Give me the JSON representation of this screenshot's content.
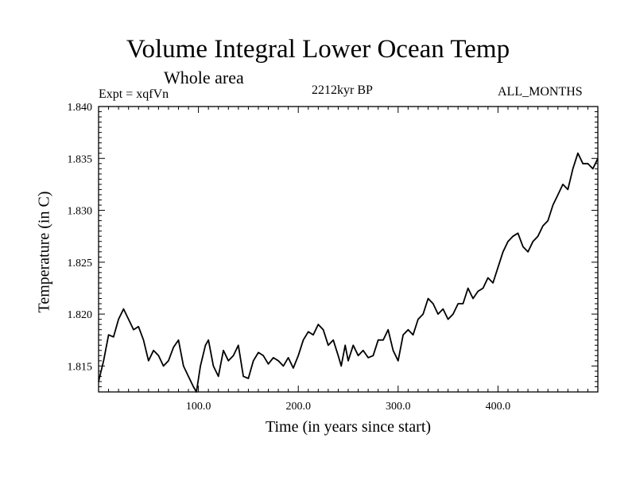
{
  "chart_data": {
    "type": "line",
    "title": "Volume Integral Lower Ocean Temp",
    "subtitle": "Whole area",
    "experiment_label": "Expt = xqfVn",
    "period_label": "2212kyr BP",
    "months_label": "ALL_MONTHS",
    "xlabel": "Time (in years since start)",
    "ylabel": "Temperature (in C)",
    "xlim": [
      0,
      500
    ],
    "ylim": [
      1.8125,
      1.84
    ],
    "x_ticks": [
      100,
      200,
      300,
      400
    ],
    "x_tick_labels": [
      "100.0",
      "200.0",
      "300.0",
      "400.0"
    ],
    "y_ticks": [
      1.815,
      1.82,
      1.825,
      1.83,
      1.835,
      1.84
    ],
    "y_tick_labels": [
      "1.815",
      "1.820",
      "1.825",
      "1.830",
      "1.835",
      "1.840"
    ],
    "grid": false,
    "series": [
      {
        "name": "Volume Integral Lower Ocean Temp",
        "x": [
          0,
          5,
          10,
          15,
          20,
          25,
          30,
          35,
          40,
          45,
          50,
          55,
          60,
          65,
          70,
          75,
          80,
          85,
          90,
          95,
          98,
          102,
          107,
          110,
          115,
          120,
          125,
          130,
          135,
          140,
          145,
          150,
          155,
          160,
          165,
          170,
          175,
          180,
          185,
          190,
          195,
          200,
          205,
          210,
          215,
          220,
          225,
          230,
          235,
          240,
          243,
          247,
          250,
          255,
          260,
          265,
          270,
          275,
          280,
          285,
          290,
          295,
          300,
          305,
          310,
          315,
          320,
          325,
          330,
          335,
          340,
          345,
          350,
          355,
          360,
          365,
          370,
          375,
          380,
          385,
          390,
          395,
          400,
          405,
          410,
          415,
          420,
          425,
          430,
          435,
          440,
          445,
          450,
          455,
          460,
          465,
          470,
          475,
          480,
          485,
          490,
          495,
          500
        ],
        "values": [
          1.8135,
          1.8155,
          1.818,
          1.8178,
          1.8195,
          1.8205,
          1.8195,
          1.8185,
          1.8188,
          1.8175,
          1.8155,
          1.8165,
          1.816,
          1.815,
          1.8155,
          1.8168,
          1.8175,
          1.815,
          1.814,
          1.813,
          1.8125,
          1.815,
          1.817,
          1.8175,
          1.815,
          1.814,
          1.8165,
          1.8155,
          1.816,
          1.817,
          1.814,
          1.8138,
          1.8155,
          1.8163,
          1.816,
          1.8152,
          1.8158,
          1.8155,
          1.815,
          1.8158,
          1.8148,
          1.816,
          1.8175,
          1.8183,
          1.818,
          1.819,
          1.8185,
          1.817,
          1.8175,
          1.816,
          1.815,
          1.817,
          1.8155,
          1.817,
          1.816,
          1.8165,
          1.8158,
          1.816,
          1.8175,
          1.8175,
          1.8185,
          1.8165,
          1.8155,
          1.818,
          1.8185,
          1.818,
          1.8195,
          1.82,
          1.8215,
          1.821,
          1.82,
          1.8205,
          1.8195,
          1.82,
          1.821,
          1.821,
          1.8225,
          1.8215,
          1.8222,
          1.8225,
          1.8235,
          1.823,
          1.8245,
          1.826,
          1.827,
          1.8275,
          1.8278,
          1.8265,
          1.826,
          1.827,
          1.8275,
          1.8285,
          1.829,
          1.8305,
          1.8315,
          1.8325,
          1.832,
          1.834,
          1.8355,
          1.8345,
          1.8345,
          1.834,
          1.835
        ]
      }
    ]
  }
}
